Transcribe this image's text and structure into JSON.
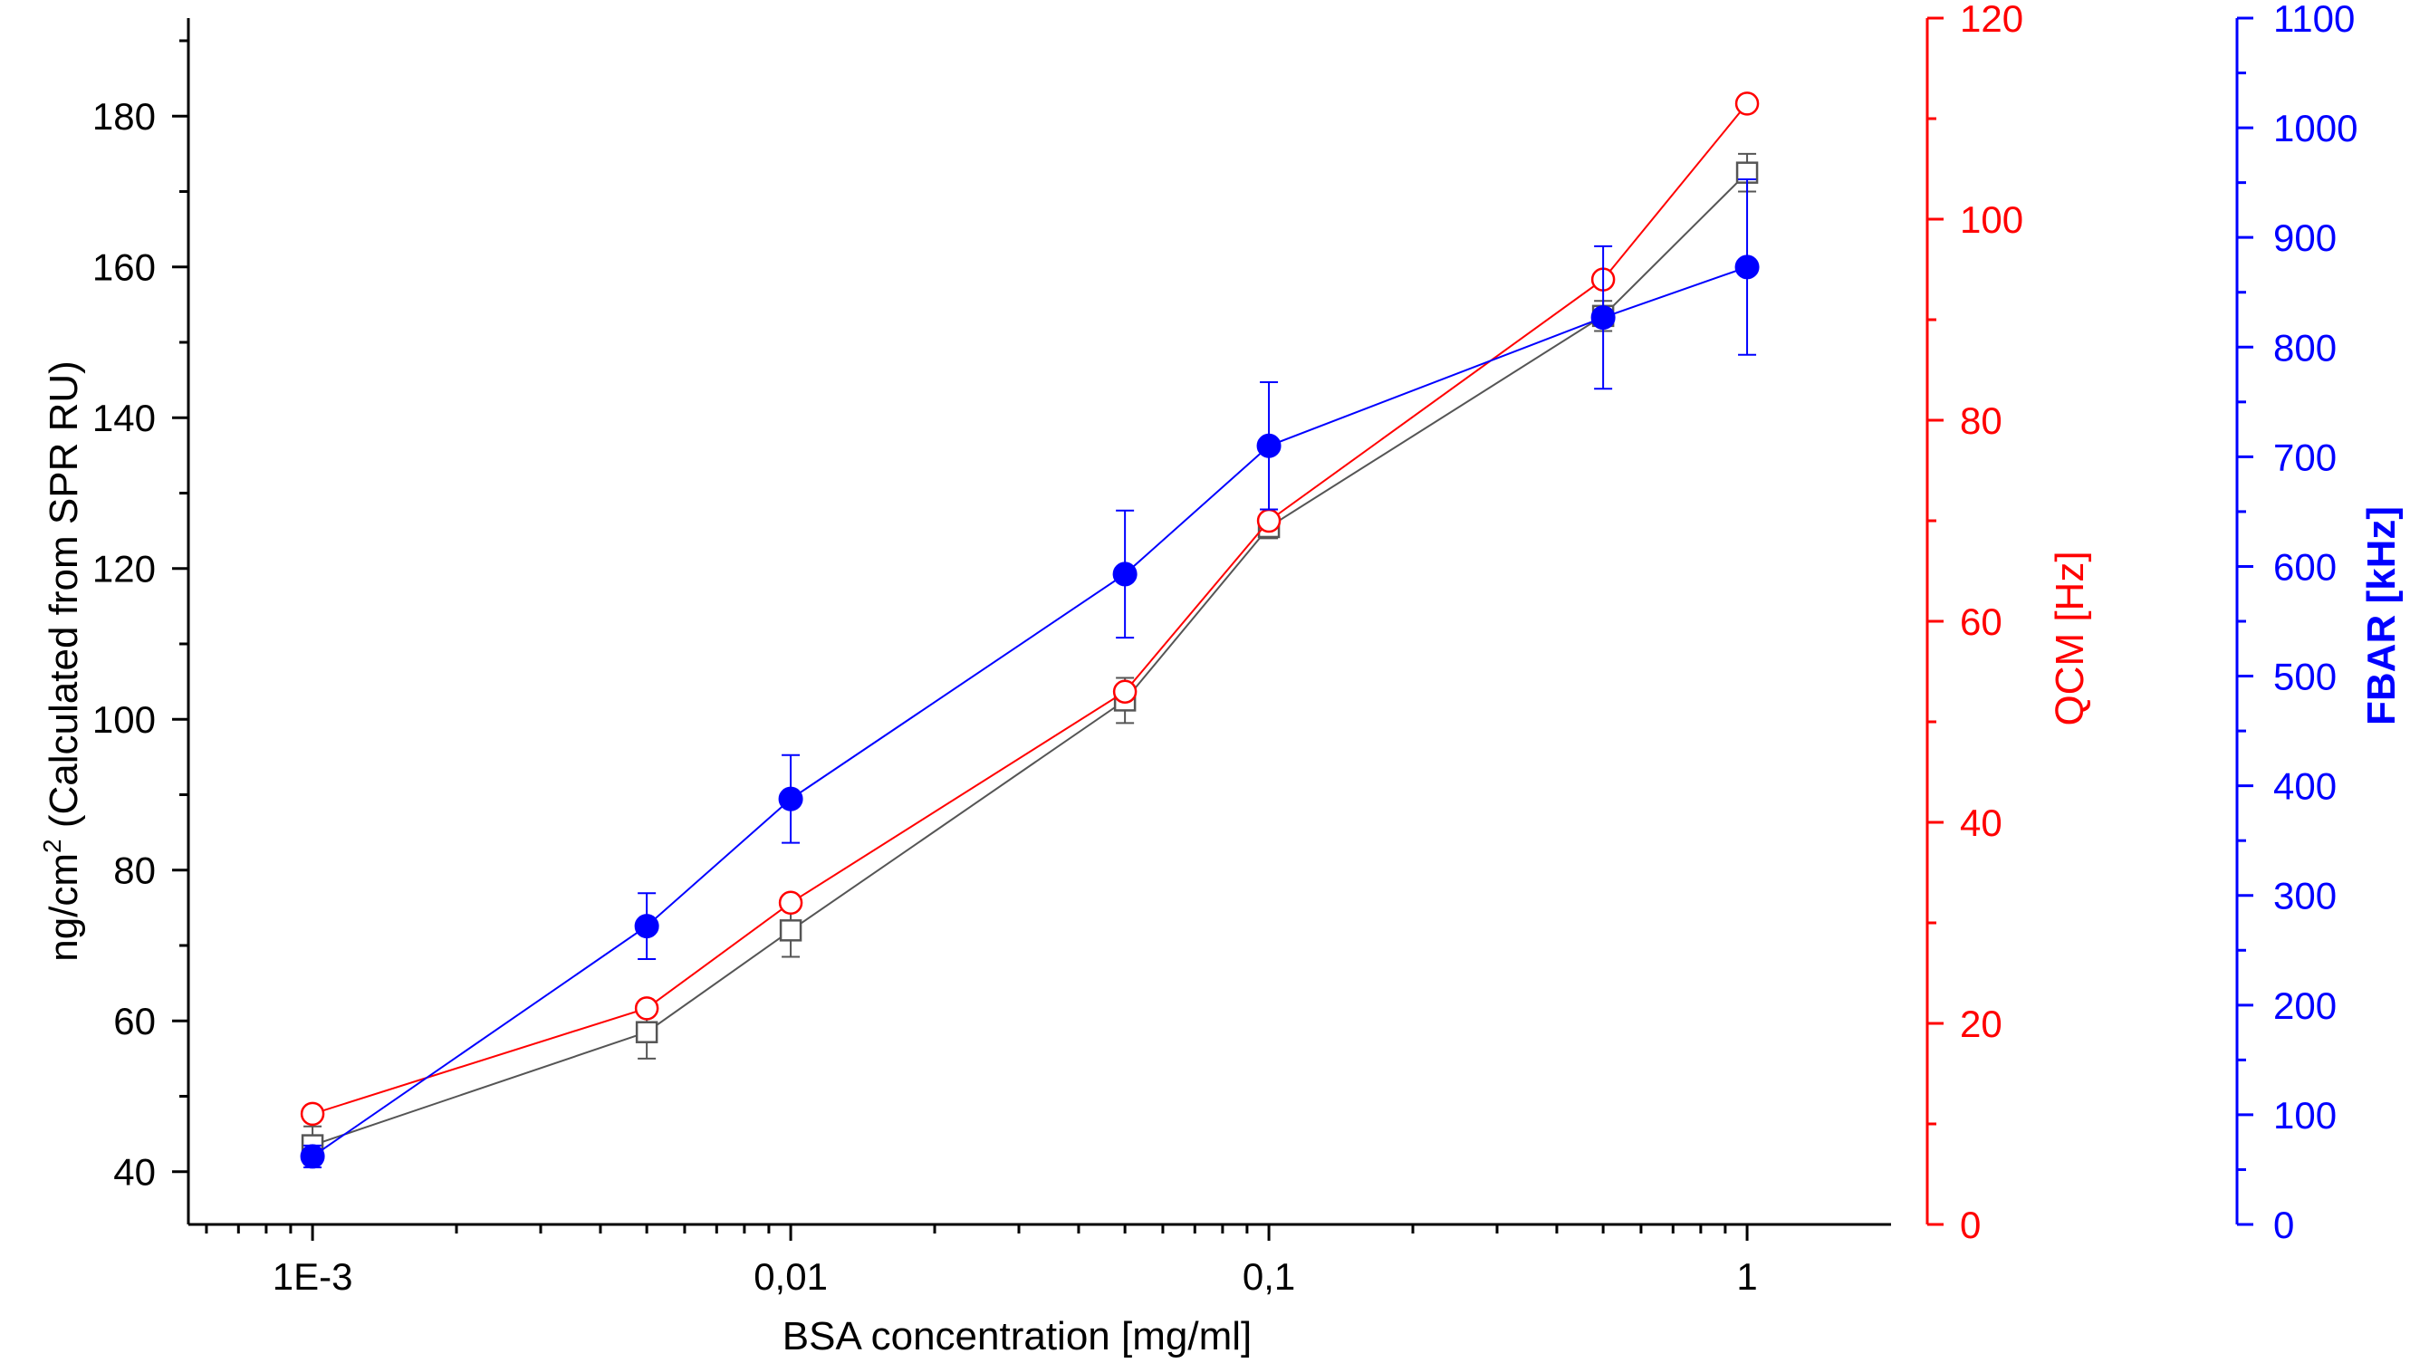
{
  "chart_data": {
    "type": "line",
    "x_scale": "log",
    "x": [
      0.001,
      0.005,
      0.01,
      0.05,
      0.1,
      0.5,
      1
    ],
    "x_tick_values": [
      0.001,
      0.01,
      0.1,
      1
    ],
    "x_tick_labels": [
      "1E-3",
      "0,01",
      "0,1",
      "1"
    ],
    "xlabel": "BSA concentration [mg/ml]",
    "xlim": [
      0.00055,
      2.0
    ],
    "axes": {
      "left": {
        "label": "ng/cm² (Calculated from SPR RU)",
        "label_main": "ng/cm",
        "label_sup": "2",
        "label_tail": " (Calculated from SPR RU)",
        "range": [
          33,
          193
        ],
        "ticks": [
          40,
          60,
          80,
          100,
          120,
          140,
          160,
          180
        ],
        "color": "#000000"
      },
      "right1": {
        "label": "QCM [Hz]",
        "range": [
          0,
          120
        ],
        "ticks": [
          0,
          20,
          40,
          60,
          80,
          100,
          120
        ],
        "color": "#ff0000"
      },
      "right2": {
        "label": "FBAR [kHz]",
        "range": [
          0,
          1100
        ],
        "ticks": [
          0,
          100,
          200,
          300,
          400,
          500,
          600,
          700,
          800,
          900,
          1000,
          1100
        ],
        "color": "#0000ff"
      }
    },
    "series": [
      {
        "name": "SPR",
        "axis": "left",
        "marker": "open-square",
        "color": "#555555",
        "values": [
          43.5,
          58.5,
          72,
          102.5,
          125.5,
          153.5,
          172.5
        ],
        "errors": [
          2.5,
          3.5,
          3.5,
          3,
          1.5,
          2,
          2.5
        ]
      },
      {
        "name": "QCM",
        "axis": "right1",
        "marker": "open-circle",
        "color": "#ff0000",
        "values": [
          11,
          21.5,
          32,
          53,
          70,
          94,
          111.5
        ],
        "errors": [
          0,
          0,
          0,
          0,
          0,
          0,
          0
        ]
      },
      {
        "name": "FBAR",
        "axis": "right2",
        "marker": "filled-circle",
        "color": "#0000ff",
        "values": [
          62,
          272,
          388,
          593,
          710,
          827,
          873
        ],
        "errors": [
          10,
          30,
          40,
          58,
          58,
          65,
          80
        ]
      }
    ]
  }
}
